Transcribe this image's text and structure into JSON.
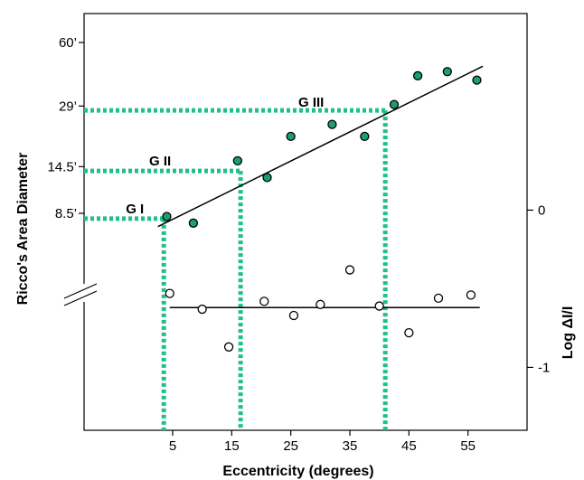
{
  "chart_data": {
    "type": "scatter",
    "xlabel": "Eccentricity (degrees)",
    "ylabel_left": "Ricco's Area Diameter",
    "ylabel_right": "Log ΔI/I",
    "xlim": [
      -10,
      65
    ],
    "x_ticks": [
      5,
      15,
      25,
      35,
      45,
      55
    ],
    "x_tick_labels": [
      "5",
      "15",
      "25",
      "35",
      "45",
      "55"
    ],
    "left_axis": {
      "ticks": [
        {
          "label": "60’",
          "value": 60
        },
        {
          "label": "29’",
          "value": 29
        },
        {
          "label": "14.5’",
          "value": 14.5
        },
        {
          "label": "8.5’",
          "value": 8.5
        }
      ],
      "scale": "log"
    },
    "right_axis": {
      "ylim": [
        -1.4,
        1.25
      ],
      "ticks": [
        0,
        -1
      ],
      "tick_labels": [
        "0",
        "-1"
      ]
    },
    "accent_color": "#1fbf8f",
    "filled_color": "#1a9e72",
    "series": [
      {
        "axis": "left",
        "marker": "filled",
        "x": [
          4,
          8.5,
          16,
          21,
          25,
          32,
          37.5,
          42.5,
          46.5,
          51.5,
          56.5
        ],
        "y": [
          8.2,
          7.6,
          15.5,
          12.8,
          20.5,
          23.5,
          20.5,
          29.5,
          41,
          43,
          39
        ]
      },
      {
        "axis": "right",
        "marker": "open",
        "x": [
          4.5,
          10,
          14.5,
          20.5,
          25.5,
          30,
          35,
          40,
          45,
          50,
          55.5
        ],
        "y": [
          -0.53,
          -0.63,
          -0.87,
          -0.58,
          -0.67,
          -0.6,
          -0.38,
          -0.61,
          -0.78,
          -0.56,
          -0.54
        ]
      }
    ],
    "fit_lines": [
      {
        "axis": "left",
        "x": [
          2.5,
          57.5
        ],
        "y": [
          7.3,
          45.7
        ]
      },
      {
        "axis": "right",
        "x": [
          4.5,
          57
        ],
        "y": [
          -0.62,
          -0.62
        ]
      }
    ],
    "groups": [
      {
        "label": "G I",
        "x": 3.5,
        "y": 8.0
      },
      {
        "label": "G II",
        "x": 16.5,
        "y": 13.8
      },
      {
        "label": "G III",
        "x": 41,
        "y": 27.6
      }
    ]
  }
}
